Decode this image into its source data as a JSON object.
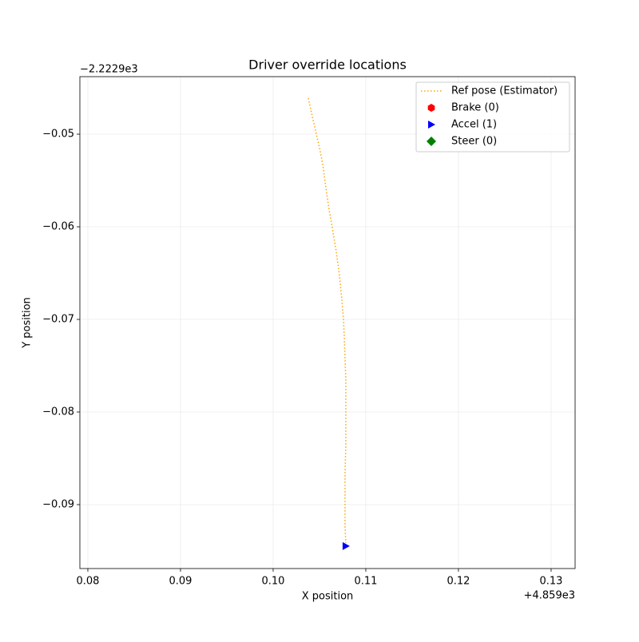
{
  "chart_data": {
    "type": "scatter",
    "title": "Driver override locations",
    "x_label": "X position",
    "y_label": "Y position",
    "x_offset_label": "+4.859e3",
    "y_offset_label": "−2.2229e3",
    "xlim": [
      0.07914,
      0.13259
    ],
    "ylim": [
      -0.0969,
      -0.04379
    ],
    "xticks": [
      {
        "value": 0.08,
        "label": "0.08"
      },
      {
        "value": 0.09,
        "label": "0.09"
      },
      {
        "value": 0.1,
        "label": "0.10"
      },
      {
        "value": 0.11,
        "label": "0.11"
      },
      {
        "value": 0.12,
        "label": "0.12"
      },
      {
        "value": 0.13,
        "label": "0.13"
      }
    ],
    "yticks": [
      {
        "value": -0.05,
        "label": "−0.05"
      },
      {
        "value": -0.06,
        "label": "−0.06"
      },
      {
        "value": -0.07,
        "label": "−0.07"
      },
      {
        "value": -0.08,
        "label": "−0.08"
      },
      {
        "value": -0.09,
        "label": "−0.09"
      }
    ],
    "grid": true,
    "legend": "upper right",
    "series": [
      {
        "name": "Ref pose (Estimator)",
        "color": "orange",
        "style": "dotted-line",
        "x": [
          0.10379,
          0.10431,
          0.105,
          0.10534,
          0.10569,
          0.10603,
          0.10638,
          0.10681,
          0.10716,
          0.10741,
          0.10759,
          0.10767,
          0.10776,
          0.10784,
          0.10784,
          0.10784,
          0.10776,
          0.10776,
          0.10776,
          0.10784
        ],
        "y": [
          -0.04612,
          -0.04845,
          -0.05147,
          -0.05319,
          -0.05578,
          -0.0581,
          -0.06009,
          -0.06267,
          -0.06526,
          -0.06784,
          -0.07,
          -0.07172,
          -0.07431,
          -0.07647,
          -0.08034,
          -0.08379,
          -0.08638,
          -0.08897,
          -0.09241,
          -0.09414
        ]
      },
      {
        "name": "Brake (0)",
        "color": "red",
        "style": "hexagon",
        "x": [],
        "y": []
      },
      {
        "name": "Accel (1)",
        "color": "blue",
        "style": "triangle-right",
        "x": [
          0.10784
        ],
        "y": [
          -0.09448
        ]
      },
      {
        "name": "Steer (0)",
        "color": "green",
        "style": "diamond",
        "x": [],
        "y": []
      }
    ]
  }
}
